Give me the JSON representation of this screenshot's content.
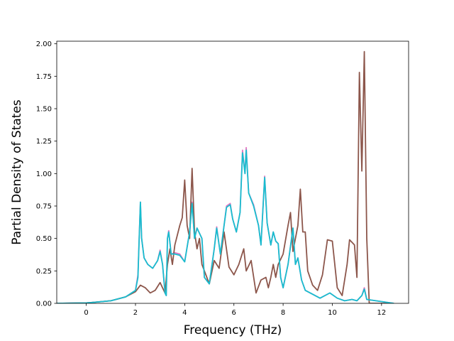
{
  "chart_data": {
    "type": "line",
    "title": "",
    "xlabel": "Frequency (THz)",
    "ylabel": "Partial Density of States",
    "xlim": [
      -1.2,
      13.1
    ],
    "ylim": [
      0.0,
      2.02
    ],
    "xticks": [
      0,
      2,
      4,
      6,
      8,
      10,
      12
    ],
    "yticks": [
      0.0,
      0.25,
      0.5,
      0.75,
      1.0,
      1.25,
      1.5,
      1.75,
      2.0
    ],
    "xtick_labels": [
      "0",
      "2",
      "4",
      "6",
      "8",
      "10",
      "12"
    ],
    "ytick_labels": [
      "0.00",
      "0.25",
      "0.50",
      "0.75",
      "1.00",
      "1.25",
      "1.50",
      "1.75",
      "2.00"
    ],
    "grid": false,
    "series": [
      {
        "color": "#e377c2",
        "points": [
          [
            -1.2,
            0.0
          ],
          [
            0.0,
            0.003
          ],
          [
            1.0,
            0.02
          ],
          [
            1.6,
            0.05
          ],
          [
            2.0,
            0.1
          ],
          [
            2.1,
            0.22
          ],
          [
            2.15,
            0.5
          ],
          [
            2.2,
            0.78
          ],
          [
            2.25,
            0.5
          ],
          [
            2.35,
            0.35
          ],
          [
            2.5,
            0.3
          ],
          [
            2.7,
            0.27
          ],
          [
            2.9,
            0.33
          ],
          [
            3.0,
            0.41
          ],
          [
            3.1,
            0.3
          ],
          [
            3.2,
            0.08
          ],
          [
            3.25,
            0.06
          ],
          [
            3.3,
            0.5
          ],
          [
            3.35,
            0.56
          ],
          [
            3.45,
            0.38
          ],
          [
            3.6,
            0.39
          ],
          [
            3.8,
            0.38
          ],
          [
            4.0,
            0.32
          ],
          [
            4.2,
            0.55
          ],
          [
            4.3,
            0.78
          ],
          [
            4.4,
            0.5
          ],
          [
            4.5,
            0.58
          ],
          [
            4.7,
            0.5
          ],
          [
            4.8,
            0.2
          ],
          [
            5.0,
            0.15
          ],
          [
            5.2,
            0.42
          ],
          [
            5.3,
            0.59
          ],
          [
            5.45,
            0.38
          ],
          [
            5.6,
            0.6
          ],
          [
            5.7,
            0.75
          ],
          [
            5.85,
            0.77
          ],
          [
            5.95,
            0.65
          ],
          [
            6.1,
            0.55
          ],
          [
            6.25,
            0.7
          ],
          [
            6.35,
            1.18
          ],
          [
            6.45,
            1.0
          ],
          [
            6.5,
            1.2
          ],
          [
            6.6,
            0.85
          ],
          [
            6.8,
            0.76
          ],
          [
            7.0,
            0.6
          ],
          [
            7.1,
            0.45
          ],
          [
            7.25,
            0.98
          ],
          [
            7.35,
            0.62
          ],
          [
            7.5,
            0.45
          ],
          [
            7.6,
            0.55
          ],
          [
            7.7,
            0.48
          ],
          [
            7.8,
            0.46
          ],
          [
            7.9,
            0.2
          ],
          [
            8.0,
            0.12
          ],
          [
            8.2,
            0.3
          ],
          [
            8.4,
            0.58
          ],
          [
            8.5,
            0.3
          ],
          [
            8.6,
            0.35
          ],
          [
            8.75,
            0.18
          ],
          [
            8.9,
            0.1
          ],
          [
            9.2,
            0.07
          ],
          [
            9.5,
            0.04
          ],
          [
            9.9,
            0.08
          ],
          [
            10.2,
            0.04
          ],
          [
            10.5,
            0.02
          ],
          [
            10.8,
            0.03
          ],
          [
            11.0,
            0.02
          ],
          [
            11.2,
            0.06
          ],
          [
            11.3,
            0.12
          ],
          [
            11.4,
            0.03
          ],
          [
            12.5,
            0.0
          ]
        ]
      },
      {
        "color": "#8c564b",
        "points": [
          [
            -1.2,
            0.0
          ],
          [
            0.0,
            0.003
          ],
          [
            1.0,
            0.02
          ],
          [
            1.6,
            0.05
          ],
          [
            2.0,
            0.09
          ],
          [
            2.2,
            0.14
          ],
          [
            2.4,
            0.12
          ],
          [
            2.6,
            0.08
          ],
          [
            2.8,
            0.1
          ],
          [
            3.0,
            0.16
          ],
          [
            3.1,
            0.12
          ],
          [
            3.2,
            0.08
          ],
          [
            3.3,
            0.3
          ],
          [
            3.4,
            0.42
          ],
          [
            3.5,
            0.3
          ],
          [
            3.6,
            0.45
          ],
          [
            3.8,
            0.6
          ],
          [
            3.9,
            0.66
          ],
          [
            4.0,
            0.95
          ],
          [
            4.1,
            0.6
          ],
          [
            4.2,
            0.5
          ],
          [
            4.3,
            1.04
          ],
          [
            4.4,
            0.55
          ],
          [
            4.5,
            0.42
          ],
          [
            4.6,
            0.5
          ],
          [
            4.7,
            0.3
          ],
          [
            4.8,
            0.25
          ],
          [
            5.0,
            0.15
          ],
          [
            5.2,
            0.33
          ],
          [
            5.4,
            0.27
          ],
          [
            5.6,
            0.55
          ],
          [
            5.8,
            0.28
          ],
          [
            6.0,
            0.22
          ],
          [
            6.2,
            0.3
          ],
          [
            6.4,
            0.42
          ],
          [
            6.5,
            0.25
          ],
          [
            6.7,
            0.33
          ],
          [
            6.9,
            0.08
          ],
          [
            7.1,
            0.18
          ],
          [
            7.3,
            0.2
          ],
          [
            7.4,
            0.12
          ],
          [
            7.5,
            0.2
          ],
          [
            7.6,
            0.3
          ],
          [
            7.7,
            0.2
          ],
          [
            7.8,
            0.3
          ],
          [
            8.0,
            0.38
          ],
          [
            8.2,
            0.6
          ],
          [
            8.3,
            0.7
          ],
          [
            8.4,
            0.4
          ],
          [
            8.6,
            0.6
          ],
          [
            8.7,
            0.88
          ],
          [
            8.8,
            0.55
          ],
          [
            8.9,
            0.55
          ],
          [
            9.0,
            0.25
          ],
          [
            9.2,
            0.14
          ],
          [
            9.4,
            0.1
          ],
          [
            9.6,
            0.22
          ],
          [
            9.8,
            0.49
          ],
          [
            10.0,
            0.48
          ],
          [
            10.2,
            0.12
          ],
          [
            10.4,
            0.06
          ],
          [
            10.6,
            0.3
          ],
          [
            10.7,
            0.49
          ],
          [
            10.9,
            0.45
          ],
          [
            11.0,
            0.2
          ],
          [
            11.1,
            1.78
          ],
          [
            11.2,
            1.02
          ],
          [
            11.3,
            1.94
          ],
          [
            11.4,
            0.5
          ],
          [
            11.5,
            0.0
          ],
          [
            12.5,
            0.0
          ]
        ]
      },
      {
        "color": "#17becf",
        "points": [
          [
            -1.2,
            0.0
          ],
          [
            0.0,
            0.003
          ],
          [
            1.0,
            0.02
          ],
          [
            1.6,
            0.05
          ],
          [
            2.0,
            0.1
          ],
          [
            2.1,
            0.2
          ],
          [
            2.15,
            0.5
          ],
          [
            2.2,
            0.78
          ],
          [
            2.25,
            0.5
          ],
          [
            2.35,
            0.35
          ],
          [
            2.5,
            0.3
          ],
          [
            2.7,
            0.27
          ],
          [
            2.9,
            0.33
          ],
          [
            3.0,
            0.4
          ],
          [
            3.1,
            0.3
          ],
          [
            3.2,
            0.08
          ],
          [
            3.25,
            0.06
          ],
          [
            3.3,
            0.5
          ],
          [
            3.35,
            0.55
          ],
          [
            3.45,
            0.38
          ],
          [
            3.6,
            0.38
          ],
          [
            3.8,
            0.37
          ],
          [
            4.0,
            0.32
          ],
          [
            4.2,
            0.55
          ],
          [
            4.3,
            0.77
          ],
          [
            4.4,
            0.5
          ],
          [
            4.5,
            0.58
          ],
          [
            4.7,
            0.5
          ],
          [
            4.8,
            0.2
          ],
          [
            5.0,
            0.15
          ],
          [
            5.2,
            0.42
          ],
          [
            5.3,
            0.58
          ],
          [
            5.45,
            0.38
          ],
          [
            5.6,
            0.6
          ],
          [
            5.7,
            0.74
          ],
          [
            5.85,
            0.76
          ],
          [
            5.95,
            0.65
          ],
          [
            6.1,
            0.55
          ],
          [
            6.25,
            0.7
          ],
          [
            6.35,
            1.16
          ],
          [
            6.45,
            1.0
          ],
          [
            6.5,
            1.18
          ],
          [
            6.6,
            0.85
          ],
          [
            6.8,
            0.75
          ],
          [
            7.0,
            0.6
          ],
          [
            7.1,
            0.45
          ],
          [
            7.25,
            0.97
          ],
          [
            7.35,
            0.62
          ],
          [
            7.5,
            0.45
          ],
          [
            7.6,
            0.55
          ],
          [
            7.7,
            0.48
          ],
          [
            7.8,
            0.46
          ],
          [
            7.9,
            0.2
          ],
          [
            8.0,
            0.12
          ],
          [
            8.2,
            0.3
          ],
          [
            8.4,
            0.58
          ],
          [
            8.5,
            0.3
          ],
          [
            8.6,
            0.35
          ],
          [
            8.75,
            0.18
          ],
          [
            8.9,
            0.1
          ],
          [
            9.2,
            0.07
          ],
          [
            9.5,
            0.04
          ],
          [
            9.9,
            0.08
          ],
          [
            10.2,
            0.04
          ],
          [
            10.5,
            0.02
          ],
          [
            10.8,
            0.03
          ],
          [
            11.0,
            0.02
          ],
          [
            11.2,
            0.06
          ],
          [
            11.3,
            0.11
          ],
          [
            11.4,
            0.03
          ],
          [
            12.5,
            0.0
          ]
        ]
      }
    ]
  }
}
